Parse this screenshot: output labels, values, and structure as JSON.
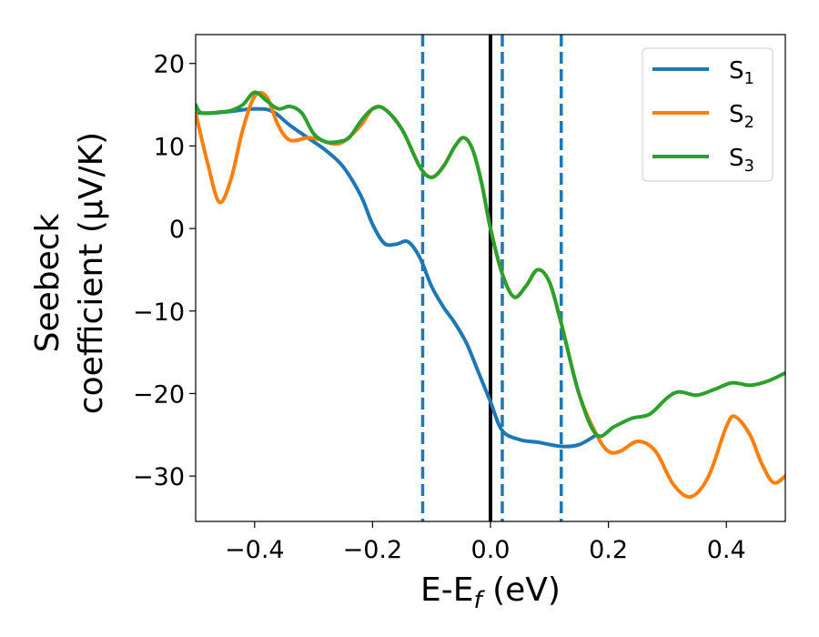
{
  "chart_data": {
    "type": "line",
    "xlabel": "E-E",
    "xlabel_sub": "f",
    "xlabel_unit": " (eV)",
    "ylabel_line1": "Seebeck",
    "ylabel_line2": "coefficient  (μV/K)",
    "xlim": [
      -0.5,
      0.5
    ],
    "ylim": [
      -35.5,
      23.5
    ],
    "xticks": [
      -0.4,
      -0.2,
      0.0,
      0.2,
      0.4
    ],
    "xtick_labels": [
      "−0.4",
      "−0.2",
      "0.0",
      "0.2",
      "0.4"
    ],
    "yticks": [
      20,
      10,
      0,
      -10,
      -20,
      -30
    ],
    "ytick_labels": [
      "20",
      "10",
      "0",
      "−10",
      "−20",
      "−30"
    ],
    "grid": false,
    "legend_position": "top-right",
    "vertical_lines": [
      {
        "x": 0.0,
        "style": "solid",
        "color": "#000000"
      },
      {
        "x": -0.115,
        "style": "dashed",
        "color": "#1f77b4"
      },
      {
        "x": 0.02,
        "style": "dashed",
        "color": "#1f77b4"
      },
      {
        "x": 0.12,
        "style": "dashed",
        "color": "#1f77b4"
      }
    ],
    "series": [
      {
        "name": "S",
        "sub": "1",
        "color": "#1f77b4",
        "points": [
          [
            -0.5,
            14
          ],
          [
            -0.47,
            14
          ],
          [
            -0.44,
            14.2
          ],
          [
            -0.4,
            14.5
          ],
          [
            -0.37,
            14.2
          ],
          [
            -0.34,
            12.5
          ],
          [
            -0.31,
            11
          ],
          [
            -0.28,
            9.5
          ],
          [
            -0.25,
            7.5
          ],
          [
            -0.22,
            4
          ],
          [
            -0.2,
            0.5
          ],
          [
            -0.18,
            -1.8
          ],
          [
            -0.16,
            -1.9
          ],
          [
            -0.14,
            -1.6
          ],
          [
            -0.12,
            -3.5
          ],
          [
            -0.1,
            -7
          ],
          [
            -0.08,
            -9.5
          ],
          [
            -0.06,
            -11.5
          ],
          [
            -0.04,
            -14
          ],
          [
            -0.02,
            -17.5
          ],
          [
            0.0,
            -21
          ],
          [
            0.02,
            -24.5
          ],
          [
            0.05,
            -25.6
          ],
          [
            0.08,
            -25.9
          ],
          [
            0.12,
            -26.4
          ],
          [
            0.15,
            -26.2
          ],
          [
            0.18,
            -25
          ]
        ]
      },
      {
        "name": "S",
        "sub": "2",
        "color": "#ff7f0e",
        "points": [
          [
            -0.5,
            14
          ],
          [
            -0.48,
            8
          ],
          [
            -0.46,
            3.2
          ],
          [
            -0.44,
            6
          ],
          [
            -0.42,
            12
          ],
          [
            -0.4,
            16
          ],
          [
            -0.38,
            16
          ],
          [
            -0.36,
            12.5
          ],
          [
            -0.34,
            10.7
          ],
          [
            -0.31,
            11
          ],
          [
            -0.29,
            10.8
          ],
          [
            -0.27,
            10.3
          ],
          [
            -0.25,
            10.5
          ],
          [
            -0.22,
            12.5
          ],
          [
            -0.2,
            14.5
          ],
          [
            -0.18,
            14.5
          ],
          [
            -0.15,
            12
          ],
          [
            -0.12,
            7.5
          ],
          [
            -0.1,
            6.2
          ],
          [
            -0.08,
            7.5
          ],
          [
            -0.06,
            10
          ],
          [
            -0.045,
            11
          ],
          [
            -0.03,
            9.5
          ],
          [
            -0.015,
            5.5
          ],
          [
            0.0,
            0
          ],
          [
            0.02,
            -5.5
          ],
          [
            0.04,
            -8.3
          ],
          [
            0.06,
            -7
          ],
          [
            0.08,
            -5
          ],
          [
            0.1,
            -6.5
          ],
          [
            0.12,
            -11.5
          ],
          [
            0.15,
            -20
          ],
          [
            0.18,
            -25
          ],
          [
            0.2,
            -27
          ],
          [
            0.22,
            -27
          ],
          [
            0.25,
            -25.8
          ],
          [
            0.28,
            -27
          ],
          [
            0.31,
            -31
          ],
          [
            0.34,
            -32.5
          ],
          [
            0.37,
            -30
          ],
          [
            0.4,
            -24
          ],
          [
            0.415,
            -22.8
          ],
          [
            0.44,
            -25
          ],
          [
            0.46,
            -28.5
          ],
          [
            0.48,
            -30.8
          ],
          [
            0.5,
            -30
          ]
        ]
      },
      {
        "name": "S",
        "sub": "3",
        "color": "#2ca02c",
        "points": [
          [
            -0.5,
            15
          ],
          [
            -0.49,
            14
          ],
          [
            -0.46,
            14.1
          ],
          [
            -0.44,
            14.3
          ],
          [
            -0.42,
            15
          ],
          [
            -0.4,
            16.5
          ],
          [
            -0.38,
            15.5
          ],
          [
            -0.36,
            14.5
          ],
          [
            -0.34,
            14.8
          ],
          [
            -0.32,
            14
          ],
          [
            -0.3,
            11.5
          ],
          [
            -0.28,
            10.5
          ],
          [
            -0.26,
            10.5
          ],
          [
            -0.24,
            11
          ],
          [
            -0.22,
            13
          ],
          [
            -0.2,
            14.5
          ],
          [
            -0.18,
            14.5
          ],
          [
            -0.15,
            12
          ],
          [
            -0.12,
            7.5
          ],
          [
            -0.1,
            6.2
          ],
          [
            -0.08,
            7.5
          ],
          [
            -0.06,
            10
          ],
          [
            -0.045,
            11
          ],
          [
            -0.03,
            9.5
          ],
          [
            -0.015,
            5.5
          ],
          [
            0.0,
            0
          ],
          [
            0.02,
            -5.5
          ],
          [
            0.04,
            -8.3
          ],
          [
            0.06,
            -7
          ],
          [
            0.08,
            -5
          ],
          [
            0.1,
            -6.5
          ],
          [
            0.12,
            -11.5
          ],
          [
            0.15,
            -20
          ],
          [
            0.18,
            -25
          ],
          [
            0.21,
            -24
          ],
          [
            0.24,
            -23
          ],
          [
            0.27,
            -22.5
          ],
          [
            0.3,
            -20.5
          ],
          [
            0.32,
            -19.8
          ],
          [
            0.35,
            -20.2
          ],
          [
            0.38,
            -19.5
          ],
          [
            0.41,
            -18.7
          ],
          [
            0.44,
            -19
          ],
          [
            0.47,
            -18.5
          ],
          [
            0.5,
            -17.5
          ]
        ]
      }
    ]
  }
}
